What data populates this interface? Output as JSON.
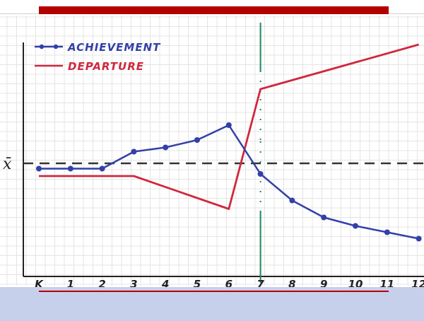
{
  "colors": {
    "achievement": "#3340a8",
    "departure": "#d0283e",
    "mean_line": "#333333",
    "intervention_line": "#1a8a5a",
    "top_bar": "#b30000",
    "bottom_band": "#c7d0ea",
    "underline": "#b30000",
    "grid": "#e4e4e4",
    "axis": "#222222"
  },
  "chart_data": {
    "type": "line",
    "categories": [
      "K",
      "1",
      "2",
      "3",
      "4",
      "5",
      "6",
      "7",
      "8",
      "9",
      "10",
      "11",
      "12"
    ],
    "y_mean_label": "x̄",
    "mean_value": 0,
    "intervention_at": "7",
    "ylim": [
      -4,
      5
    ],
    "grid": true,
    "legend_position": "top-left",
    "series": [
      {
        "name": "ACHIEVEMENT",
        "marker": "dot",
        "values": [
          -0.25,
          -0.25,
          -0.25,
          0.55,
          0.75,
          1.1,
          1.8,
          -0.5,
          -1.75,
          -2.55,
          -2.95,
          -3.25,
          -3.55
        ]
      },
      {
        "name": "DEPARTURE",
        "marker": "none",
        "points": [
          {
            "x": "K",
            "y": -0.6
          },
          {
            "x": "3",
            "y": -0.6
          },
          {
            "x": "6",
            "y": -2.15
          },
          {
            "x": "7",
            "y": 3.5
          },
          {
            "x": "12",
            "y": 5.6
          }
        ]
      }
    ]
  }
}
